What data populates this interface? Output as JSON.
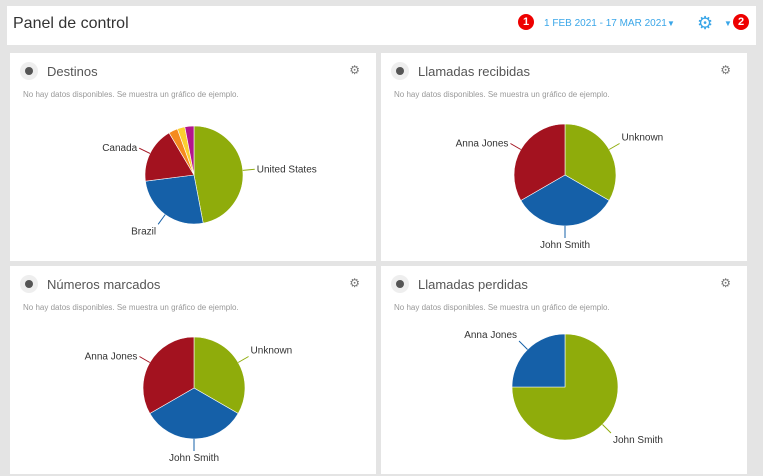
{
  "header": {
    "title": "Panel de control",
    "date_range": "1 FEB 2021 - 17 MAR 2021",
    "badge1": "1",
    "badge2": "2"
  },
  "note": "No hay datos disponibles. Se muestra un gráfico de ejemplo.",
  "colors": {
    "accent": "#3aa6e8",
    "badge": "#e00000"
  },
  "chart_data": [
    {
      "type": "pie",
      "title": "Destinos",
      "slices": [
        {
          "label": "United States",
          "value": 47,
          "color": "#8fac0b"
        },
        {
          "label": "Brazil",
          "value": 26,
          "color": "#1560a8"
        },
        {
          "label": "Canada",
          "value": 18.5,
          "color": "#a3121f"
        },
        {
          "label": "",
          "value": 3,
          "color": "#f58b1f"
        },
        {
          "label": "",
          "value": 2.5,
          "color": "#fbd030"
        },
        {
          "label": "",
          "value": 3,
          "color": "#b3168c"
        }
      ]
    },
    {
      "type": "pie",
      "title": "Llamadas recibidas",
      "slices": [
        {
          "label": "Unknown",
          "value": 33.3,
          "color": "#8fac0b"
        },
        {
          "label": "John Smith",
          "value": 33.3,
          "color": "#1560a8"
        },
        {
          "label": "Anna Jones",
          "value": 33.3,
          "color": "#a3121f"
        }
      ]
    },
    {
      "type": "pie",
      "title": "Números marcados",
      "slices": [
        {
          "label": "Unknown",
          "value": 33.3,
          "color": "#8fac0b"
        },
        {
          "label": "John Smith",
          "value": 33.3,
          "color": "#1560a8"
        },
        {
          "label": "Anna Jones",
          "value": 33.3,
          "color": "#a3121f"
        }
      ]
    },
    {
      "type": "pie",
      "title": "Llamadas perdidas",
      "slices": [
        {
          "label": "John Smith",
          "value": 75,
          "color": "#8fac0b"
        },
        {
          "label": "Anna Jones",
          "value": 25,
          "color": "#1560a8"
        }
      ]
    }
  ]
}
